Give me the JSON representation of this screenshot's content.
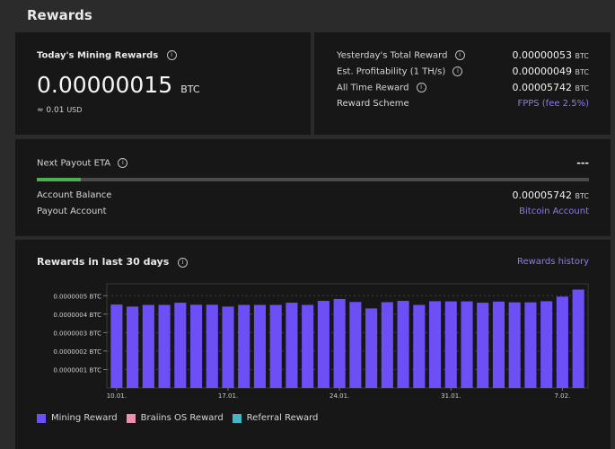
{
  "page": {
    "title": "Rewards"
  },
  "today": {
    "label": "Today's Mining Rewards",
    "value": "0.00000015",
    "unit": "BTC",
    "usd": "≈ 0.01",
    "usd_unit": "USD"
  },
  "stats": [
    {
      "label": "Yesterday's Total Reward",
      "value": "0.00000053",
      "unit": "BTC"
    },
    {
      "label": "Est. Profitability (1 TH/s)",
      "value": "0.00000049",
      "unit": "BTC"
    },
    {
      "label": "All Time Reward",
      "value": "0.00005742",
      "unit": "BTC"
    },
    {
      "label": "Reward Scheme",
      "link": "FPPS (fee 2.5%)"
    }
  ],
  "payout": {
    "eta_label": "Next Payout ETA",
    "eta_value": "---",
    "progress": 0.08,
    "balance_label": "Account Balance",
    "balance_value": "0.00005742",
    "balance_unit": "BTC",
    "account_label": "Payout Account",
    "account_link": "Bitcoin Account"
  },
  "chart_section": {
    "title": "Rewards in last 30 days",
    "history_link": "Rewards history"
  },
  "chart_data": {
    "type": "bar",
    "ylim": [
      0,
      5.5e-07
    ],
    "y_ticks": [
      {
        "value": 1e-07,
        "label": "0.0000001 BTC"
      },
      {
        "value": 2e-07,
        "label": "0.0000002 BTC"
      },
      {
        "value": 3e-07,
        "label": "0.0000003 BTC"
      },
      {
        "value": 4e-07,
        "label": "0.0000004 BTC"
      },
      {
        "value": 5e-07,
        "label": "0.0000005 BTC"
      }
    ],
    "x_ticks": [
      {
        "index": 0,
        "label": "10.01."
      },
      {
        "index": 7,
        "label": "17.01."
      },
      {
        "index": 14,
        "label": "24.01."
      },
      {
        "index": 21,
        "label": "31.01."
      },
      {
        "index": 28,
        "label": "7.02."
      }
    ],
    "color": "#6e4ef5",
    "series": [
      {
        "name": "Mining Reward",
        "values": [
          4.52e-07,
          4.41e-07,
          4.5e-07,
          4.5e-07,
          4.62e-07,
          4.51e-07,
          4.51e-07,
          4.41e-07,
          4.5e-07,
          4.5e-07,
          4.5e-07,
          4.62e-07,
          4.5e-07,
          4.72e-07,
          4.82e-07,
          4.66e-07,
          4.31e-07,
          4.65e-07,
          4.72e-07,
          4.5e-07,
          4.7e-07,
          4.69e-07,
          4.69e-07,
          4.62e-07,
          4.68e-07,
          4.64e-07,
          4.64e-07,
          4.7e-07,
          4.95e-07,
          5.33e-07
        ]
      }
    ],
    "legend": [
      {
        "name": "Mining Reward",
        "color": "#6e4ef5"
      },
      {
        "name": "Braiins OS Reward",
        "color": "#ef8fb0"
      },
      {
        "name": "Referral Reward",
        "color": "#46b4c2"
      }
    ]
  }
}
